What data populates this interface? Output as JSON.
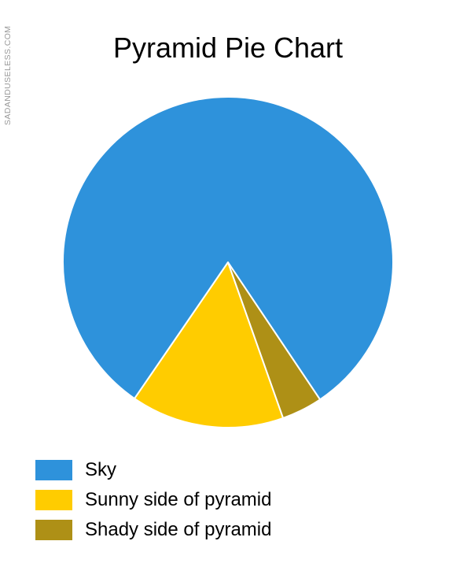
{
  "watermark": "SADANDUSELESS.COM",
  "chart_data": {
    "type": "pie",
    "title": "Pyramid Pie Chart",
    "slices": [
      {
        "label": "Sky",
        "value": 81,
        "color": "#2E92DB"
      },
      {
        "label": "Sunny side of pyramid",
        "value": 15,
        "color": "#FFCC00"
      },
      {
        "label": "Shady side of pyramid",
        "value": 4,
        "color": "#AE9016"
      }
    ],
    "legend_position": "bottom-left"
  }
}
